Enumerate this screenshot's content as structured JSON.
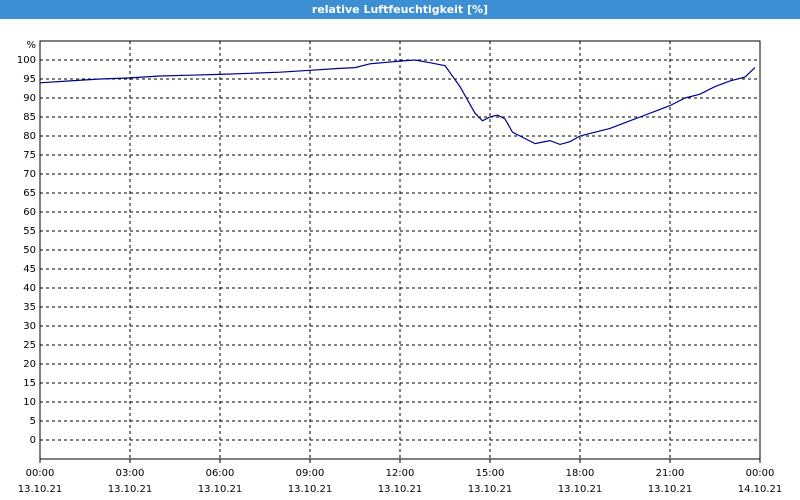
{
  "chart_data": {
    "type": "line",
    "title": "relative Luftfeuchtigkeit [%]",
    "y_label": "%",
    "xlim": [
      "13.10.21 00:00",
      "14.10.21 00:00"
    ],
    "xticks": [
      {
        "value": "13.10.21 00:00",
        "label": [
          "00:00",
          "13.10.21"
        ]
      },
      {
        "value": "13.10.21 03:00",
        "label": [
          "03:00",
          "13.10.21"
        ]
      },
      {
        "value": "13.10.21 06:00",
        "label": [
          "06:00",
          "13.10.21"
        ]
      },
      {
        "value": "13.10.21 09:00",
        "label": [
          "09:00",
          "13.10.21"
        ]
      },
      {
        "value": "13.10.21 12:00",
        "label": [
          "12:00",
          "13.10.21"
        ]
      },
      {
        "value": "13.10.21 15:00",
        "label": [
          "15:00",
          "13.10.21"
        ]
      },
      {
        "value": "13.10.21 18:00",
        "label": [
          "18:00",
          "13.10.21"
        ]
      },
      {
        "value": "13.10.21 21:00",
        "label": [
          "21:00",
          "13.10.21"
        ]
      },
      {
        "value": "14.10.21 00:00",
        "label": [
          "00:00",
          "14.10.21"
        ]
      }
    ],
    "ylim": [
      -5,
      105
    ],
    "yticks": [
      0,
      5,
      10,
      15,
      20,
      25,
      30,
      35,
      40,
      45,
      50,
      55,
      60,
      65,
      70,
      75,
      80,
      85,
      90,
      95,
      100
    ],
    "grid": true,
    "series": [
      {
        "name": "relative Luftfeuchtigkeit",
        "color": "#00008b",
        "x": [
          "13.10.21 00:00",
          "13.10.21 01:00",
          "13.10.21 02:00",
          "13.10.21 03:00",
          "13.10.21 04:00",
          "13.10.21 05:00",
          "13.10.21 06:00",
          "13.10.21 07:00",
          "13.10.21 08:00",
          "13.10.21 09:00",
          "13.10.21 10:00",
          "13.10.21 10:30",
          "13.10.21 11:00",
          "13.10.21 12:00",
          "13.10.21 12:30",
          "13.10.21 13:00",
          "13.10.21 13:30",
          "13.10.21 14:00",
          "13.10.21 14:30",
          "13.10.21 14:45",
          "13.10.21 15:00",
          "13.10.21 15:15",
          "13.10.21 15:30",
          "13.10.21 15:45",
          "13.10.21 16:00",
          "13.10.21 16:30",
          "13.10.21 17:00",
          "13.10.21 17:20",
          "13.10.21 17:40",
          "13.10.21 18:00",
          "13.10.21 18:30",
          "13.10.21 19:00",
          "13.10.21 19:30",
          "13.10.21 20:00",
          "13.10.21 20:30",
          "13.10.21 21:00",
          "13.10.21 21:30",
          "13.10.21 22:00",
          "13.10.21 22:30",
          "13.10.21 23:00",
          "13.10.21 23:30",
          "13.10.21 23:50"
        ],
        "values": [
          94,
          94.5,
          95,
          95.3,
          95.8,
          96,
          96.2,
          96.5,
          96.8,
          97.3,
          97.8,
          98,
          99,
          99.7,
          100,
          99.3,
          98.5,
          93,
          86,
          84,
          85,
          85.5,
          84.5,
          81,
          80,
          78,
          78.8,
          77.8,
          78.5,
          80,
          81,
          82,
          83.5,
          85,
          86.5,
          88,
          90,
          91,
          93,
          94.5,
          95.5,
          98
        ]
      }
    ]
  }
}
